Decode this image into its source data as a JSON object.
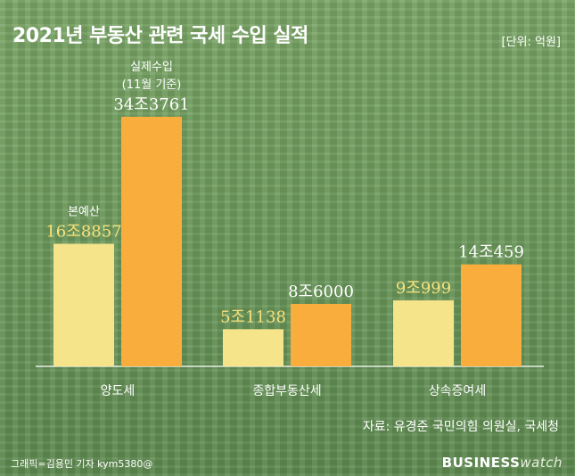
{
  "header": {
    "title": "2021년 부동산 관련 국세 수입 실적",
    "unit": "[단위: 억원]"
  },
  "footer": {
    "source": "자료: 유경준 국민의힘 의원실, 국세청",
    "credit": "그래픽=김용민 기자 kym5380@",
    "logo_main": "BUSINESS",
    "logo_sub": "watch"
  },
  "colors": {
    "budget": "#f5e48a",
    "actual": "#f9ad3c",
    "budget_label": "#f7e17a",
    "actual_label": "#ffffff"
  },
  "chart_data": {
    "type": "bar",
    "categories": [
      "양도세",
      "종합부동산세",
      "상속증여세"
    ],
    "series": [
      {
        "name": "본예산",
        "values": [
          168857,
          51138,
          90999
        ],
        "labels": [
          "16조8857",
          "5조1138",
          "9조999"
        ]
      },
      {
        "name": "실제수입",
        "name_line2": "(11월 기준)",
        "values": [
          343761,
          86000,
          140459
        ],
        "labels": [
          "34조3761",
          "8조6000",
          "14조459"
        ]
      }
    ],
    "title": "2021년 부동산 관련 국세 수입 실적",
    "xlabel": "",
    "ylabel": "",
    "unit": "억원",
    "ylim": [
      0,
      343761
    ],
    "legend": "annotated above first category bars"
  }
}
